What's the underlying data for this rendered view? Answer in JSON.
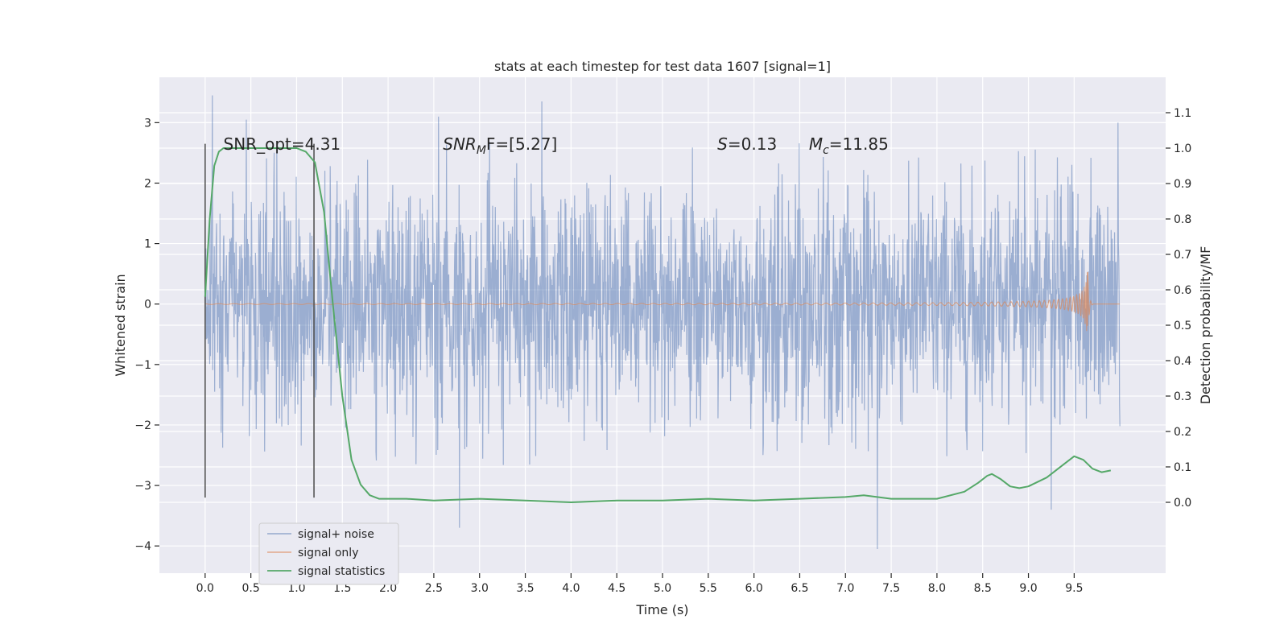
{
  "chart_data": {
    "type": "line",
    "title": "stats at each timestep for test data 1607 [signal=1]",
    "xlabel": "Time (s)",
    "ylabel": "Whitened strain",
    "y2label": "Detection probability/MF",
    "xlim": [
      -0.5,
      10.5
    ],
    "ylim": [
      -4.45,
      3.75
    ],
    "y2lim": [
      -0.2,
      1.2
    ],
    "x_ticks": [
      0.0,
      0.5,
      1.0,
      1.5,
      2.0,
      2.5,
      3.0,
      3.5,
      4.0,
      4.5,
      5.0,
      5.5,
      6.0,
      6.5,
      7.0,
      7.5,
      8.0,
      8.5,
      9.0,
      9.5
    ],
    "x_tick_labels": [
      "0.0",
      "0.5",
      "1.0",
      "1.5",
      "2.0",
      "2.5",
      "3.0",
      "3.5",
      "4.0",
      "4.5",
      "5.0",
      "5.5",
      "6.0",
      "6.5",
      "7.0",
      "7.5",
      "8.0",
      "8.5",
      "9.0",
      "9.5"
    ],
    "y_ticks": [
      3,
      2,
      1,
      0,
      -1,
      -2,
      -3,
      -4
    ],
    "y_tick_labels": [
      "3",
      "2",
      "1",
      "0",
      "−1",
      "−2",
      "−3",
      "−4"
    ],
    "y2_ticks": [
      1.1,
      1.0,
      0.9,
      0.8,
      0.7,
      0.6,
      0.5,
      0.4,
      0.3,
      0.2,
      0.1,
      0.0
    ],
    "y2_tick_labels": [
      "1.1",
      "1.0",
      "0.9",
      "0.8",
      "0.7",
      "0.6",
      "0.5",
      "0.4",
      "0.3",
      "0.2",
      "0.1",
      "0.0"
    ],
    "grid": true,
    "legend_position": "lower-left",
    "series": [
      {
        "name": "signal+ noise",
        "color": "#4c72b0",
        "kind": "noise",
        "x_range": [
          0.0,
          10.0
        ],
        "typical_amplitude": 1.0,
        "peak_range": [
          -4.1,
          3.5
        ],
        "outliers": [
          {
            "x": 0.08,
            "y": 3.45
          },
          {
            "x": 0.45,
            "y": 3.05
          },
          {
            "x": 2.55,
            "y": 3.1
          },
          {
            "x": 2.78,
            "y": -3.7
          },
          {
            "x": 3.68,
            "y": 3.35
          },
          {
            "x": 7.35,
            "y": -4.05
          },
          {
            "x": 9.25,
            "y": -3.4
          },
          {
            "x": 9.98,
            "y": 3.0
          }
        ]
      },
      {
        "name": "signal only",
        "color": "#dd8452",
        "kind": "chirp",
        "x_range": [
          0.0,
          10.0
        ],
        "merger_time": 9.65,
        "peak_amplitude": 0.6
      },
      {
        "name": "signal statistics",
        "color": "#55a868",
        "axis": "right",
        "x": [
          0.0,
          0.05,
          0.1,
          0.15,
          0.2,
          0.3,
          0.5,
          0.8,
          1.0,
          1.1,
          1.2,
          1.3,
          1.4,
          1.5,
          1.6,
          1.7,
          1.8,
          1.9,
          2.0,
          2.2,
          2.5,
          3.0,
          3.5,
          4.0,
          4.5,
          5.0,
          5.5,
          6.0,
          6.5,
          7.0,
          7.2,
          7.5,
          8.0,
          8.3,
          8.45,
          8.55,
          8.6,
          8.7,
          8.8,
          8.9,
          9.0,
          9.2,
          9.4,
          9.5,
          9.6,
          9.7,
          9.8,
          9.9
        ],
        "values": [
          0.58,
          0.8,
          0.95,
          0.99,
          1.0,
          1.0,
          1.0,
          1.0,
          1.0,
          0.99,
          0.96,
          0.82,
          0.55,
          0.3,
          0.12,
          0.05,
          0.02,
          0.01,
          0.01,
          0.01,
          0.005,
          0.01,
          0.005,
          0.0,
          0.005,
          0.005,
          0.01,
          0.005,
          0.01,
          0.015,
          0.02,
          0.01,
          0.01,
          0.03,
          0.055,
          0.075,
          0.08,
          0.065,
          0.045,
          0.04,
          0.045,
          0.07,
          0.11,
          0.13,
          0.12,
          0.095,
          0.085,
          0.09
        ]
      },
      {
        "name": "",
        "color": "#555555",
        "kind": "vertical-marker",
        "x": 0.0,
        "y_range": [
          -3.2,
          2.65
        ]
      },
      {
        "name": "",
        "color": "#555555",
        "kind": "vertical-marker",
        "x": 1.19,
        "y_range": [
          -3.2,
          2.65
        ]
      }
    ],
    "annotations": [
      {
        "id": "snr-opt",
        "text": "SNR_opt=4.31",
        "x": 0.2,
        "y": 2.55
      },
      {
        "id": "snr-mf",
        "text": "SNR",
        "sub": "M",
        "tail": "F=[5.27]",
        "x": 2.6,
        "y": 2.55
      },
      {
        "id": "s",
        "text": "S",
        "tail": "=0.13",
        "x": 5.6,
        "y": 2.55
      },
      {
        "id": "mc",
        "text": "M",
        "sub": "c",
        "tail": "=11.85",
        "x": 6.6,
        "y": 2.55
      }
    ]
  }
}
